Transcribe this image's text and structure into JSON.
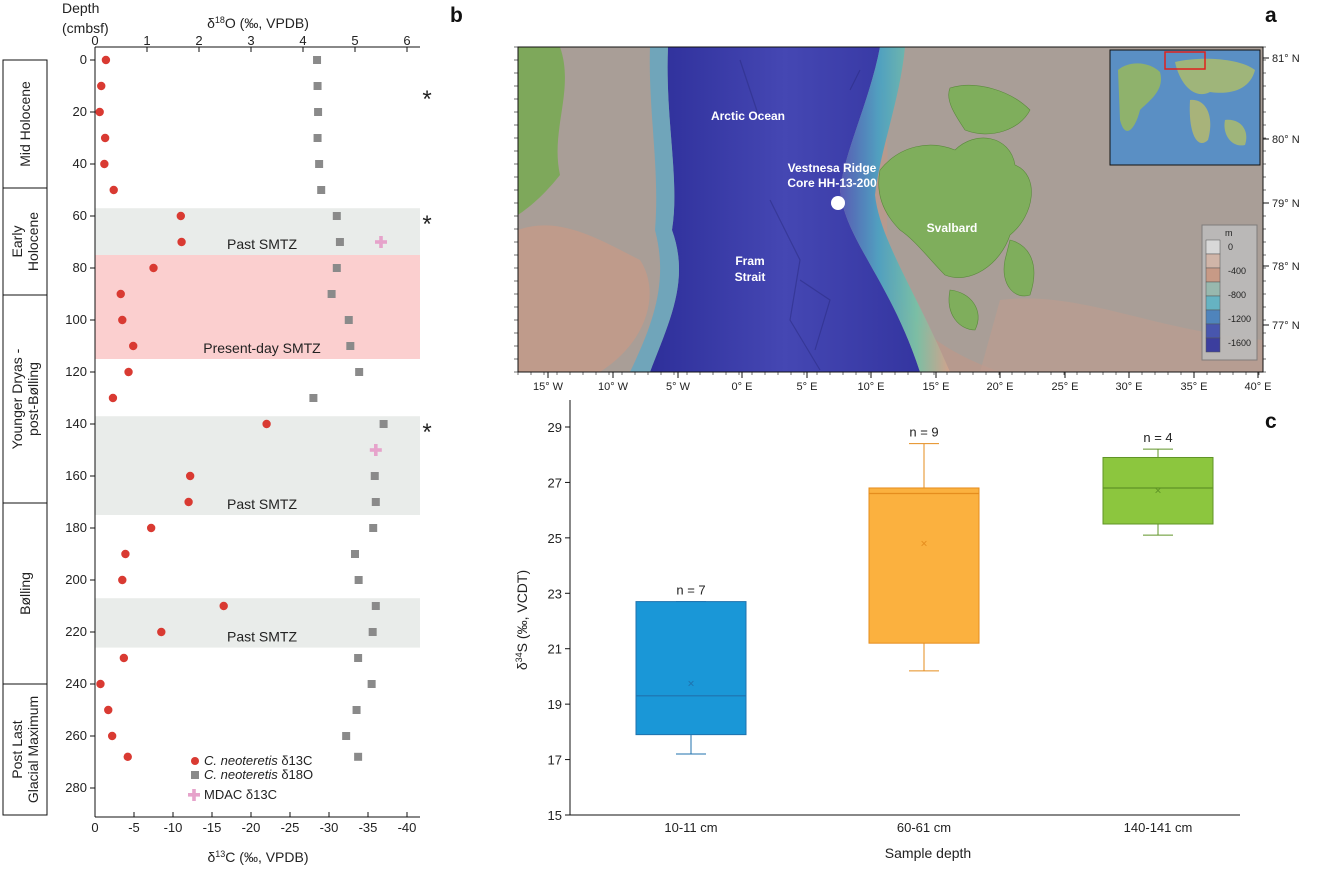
{
  "panel_letters": {
    "left": "",
    "b": "b",
    "a": "a",
    "c": "c"
  },
  "chart_data": [
    {
      "type": "scatter",
      "depth_label_line1": "Depth",
      "depth_label_line2": "(cmbsf)",
      "top_axis_label": "δ18O (‰, VPDB)",
      "bottom_axis_label": "δ13C (‰, VPDB)",
      "depth_ticks": [
        "0",
        "20",
        "40",
        "60",
        "80",
        "100",
        "120",
        "140",
        "160",
        "180",
        "200",
        "220",
        "240",
        "260",
        "280"
      ],
      "d18o_ticks": [
        "0",
        "1",
        "2",
        "3",
        "4",
        "5",
        "6"
      ],
      "d13c_ticks": [
        "0",
        "-5",
        "-10",
        "-15",
        "-20",
        "-25",
        "-30",
        "-35",
        "-40"
      ],
      "ylim": [
        0,
        290
      ],
      "d18o_lim": [
        0,
        6
      ],
      "d13c_lim": [
        0,
        -40
      ],
      "periods": [
        {
          "label": "Mid Holocene",
          "from": 0,
          "to": 50
        },
        {
          "label": "Early Holocene",
          "from": 50,
          "to": 90
        },
        {
          "label": "Younger Dryas - post-Bølling",
          "from": 90,
          "to": 170
        },
        {
          "label": "Bølling",
          "from": 170,
          "to": 240
        },
        {
          "label": "Post Last Glacial Maximum",
          "from": 240,
          "to": 290
        }
      ],
      "bands": [
        {
          "label": "Past SMTZ",
          "from": 57,
          "to": 75,
          "color": "#e9ecea"
        },
        {
          "label": "Present-day SMTZ",
          "from": 75,
          "to": 115,
          "color": "#fbcfcf"
        },
        {
          "label": "Past SMTZ",
          "from": 137,
          "to": 175,
          "color": "#e9ecea"
        },
        {
          "label": "Past SMTZ",
          "from": 207,
          "to": 226,
          "color": "#e9ecea"
        }
      ],
      "asterisks": [
        {
          "depth": 12,
          "text": "*"
        },
        {
          "depth": 60,
          "text": "*"
        },
        {
          "depth": 140,
          "text": "*"
        }
      ],
      "series": [
        {
          "name": "C. neoteretis δ13C",
          "axis": "d13c",
          "marker": "circle",
          "x": [
            -1.4,
            -0.8,
            -0.6,
            -1.3,
            -1.2,
            -2.4,
            -11.0,
            -11.1,
            -7.5,
            -3.3,
            -3.5,
            -4.9,
            -4.3,
            -2.3,
            -22.0,
            -12.2,
            -12.0,
            -7.2,
            -3.9,
            -3.5,
            -16.5,
            -8.5,
            -3.7,
            -0.7,
            -1.7,
            -2.2,
            -4.2
          ],
          "y": [
            0,
            10,
            20,
            30,
            40,
            50,
            60,
            70,
            80,
            90,
            100,
            110,
            120,
            130,
            140,
            160,
            170,
            180,
            190,
            200,
            210,
            220,
            230,
            240,
            250,
            260,
            268
          ]
        },
        {
          "name": "C. neoteretis δ18O",
          "axis": "d18o",
          "marker": "square",
          "x": [
            4.27,
            4.28,
            4.29,
            4.28,
            4.31,
            4.35,
            4.65,
            4.71,
            4.65,
            4.55,
            4.88,
            4.91,
            5.08,
            4.2,
            5.55,
            5.38,
            5.4,
            5.35,
            5.0,
            5.07,
            5.4,
            5.34,
            5.06,
            5.32,
            5.03,
            4.83,
            5.06
          ],
          "y": [
            0,
            10,
            20,
            30,
            40,
            50,
            60,
            70,
            80,
            90,
            100,
            110,
            120,
            130,
            140,
            160,
            170,
            180,
            190,
            200,
            210,
            220,
            230,
            240,
            250,
            260,
            268
          ]
        },
        {
          "name": "MDAC δ13C",
          "axis": "d18o",
          "marker": "cross",
          "x": [
            5.5,
            5.4
          ],
          "y": [
            70,
            150
          ]
        }
      ],
      "legend": [
        {
          "italic": "C. neoteretis",
          "text": " δ13C"
        },
        {
          "italic": "C. neoteretis",
          "text": " δ18O"
        },
        {
          "italic": "",
          "text": "MDAC δ13C"
        }
      ],
      "colors": {
        "d13c": "#d93a32",
        "d18o": "#8a8a8a",
        "mdac": "#e6a3cb"
      }
    },
    {
      "type": "box",
      "xlabel": "Sample depth",
      "ylabel": "δ34S (‰, VCDT)",
      "ylim": [
        15,
        30
      ],
      "yticks": [
        "15",
        "17",
        "19",
        "21",
        "23",
        "25",
        "27",
        "29"
      ],
      "categories": [
        "10-11 cm",
        "60-61 cm",
        "140-141 cm"
      ],
      "boxes": [
        {
          "n_label": "n = 7",
          "min": 17.2,
          "q1": 17.9,
          "median": 19.3,
          "q3": 22.7,
          "max": 22.7,
          "mean": 19.75,
          "color": "#1a97d7",
          "edge": "#1f72ad"
        },
        {
          "n_label": "n = 9",
          "min": 20.2,
          "q1": 21.2,
          "median": 26.6,
          "q3": 26.8,
          "max": 28.4,
          "mean": 24.8,
          "color": "#fbb13f",
          "edge": "#e58d1e"
        },
        {
          "n_label": "n = 4",
          "min": 25.1,
          "q1": 25.5,
          "median": 26.8,
          "q3": 27.9,
          "max": 28.2,
          "mean": 26.7,
          "color": "#8cc63e",
          "edge": "#5f9427"
        }
      ]
    }
  ],
  "map": {
    "labels": [
      "Arctic Ocean",
      "Vestnesa Ridge",
      "Core HH-13-200",
      "Fram",
      "Strait",
      "Svalbard"
    ],
    "lon_ticks": [
      "15° W",
      "10° W",
      "5° W",
      "0° E",
      "5° E",
      "10° E",
      "15° E",
      "20° E",
      "25° E",
      "30° E",
      "35° E",
      "40° E"
    ],
    "lat_ticks": [
      "81° N",
      "80° N",
      "79° N",
      "78° N",
      "77° N"
    ],
    "legend_unit": "m",
    "legend_values": [
      "0",
      "-400",
      "-800",
      "-1200",
      "-1600"
    ],
    "colors": {
      "ocean": "#3d3fa8",
      "land": "#a89a92",
      "shelf": "#caa08e",
      "glacier": "#7fae5c"
    }
  }
}
